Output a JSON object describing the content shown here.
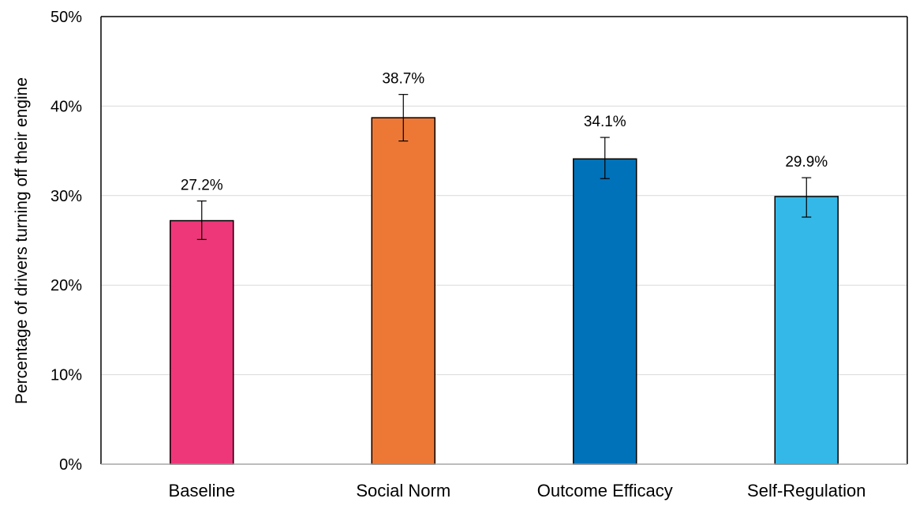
{
  "chart_data": {
    "type": "bar",
    "categories": [
      "Baseline",
      "Social Norm",
      "Outcome Efficacy",
      "Self-Regulation"
    ],
    "values": [
      27.2,
      38.7,
      34.1,
      29.9
    ],
    "data_labels": [
      "27.2%",
      "38.7%",
      "34.1%",
      "29.9%"
    ],
    "error_bars": [
      {
        "low": 25.1,
        "high": 29.4
      },
      {
        "low": 36.1,
        "high": 41.3
      },
      {
        "low": 31.9,
        "high": 36.5
      },
      {
        "low": 27.6,
        "high": 32.0
      }
    ],
    "colors": [
      "#EE3779",
      "#ED7836",
      "#0072BA",
      "#34B8E8"
    ],
    "title": "",
    "xlabel": "",
    "ylabel": "Percentage of drivers turning off their engine",
    "ylim": [
      0,
      50
    ],
    "yticks": [
      0,
      10,
      20,
      30,
      40,
      50
    ],
    "ytick_labels": [
      "0%",
      "10%",
      "20%",
      "30%",
      "40%",
      "50%"
    ],
    "grid": true,
    "legend": "none"
  }
}
